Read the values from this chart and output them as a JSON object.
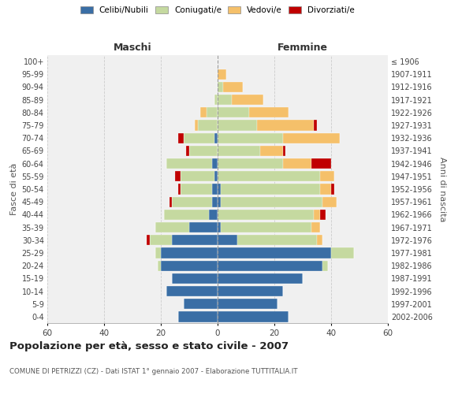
{
  "age_groups": [
    "0-4",
    "5-9",
    "10-14",
    "15-19",
    "20-24",
    "25-29",
    "30-34",
    "35-39",
    "40-44",
    "45-49",
    "50-54",
    "55-59",
    "60-64",
    "65-69",
    "70-74",
    "75-79",
    "80-84",
    "85-89",
    "90-94",
    "95-99",
    "100+"
  ],
  "birth_years": [
    "2002-2006",
    "1997-2001",
    "1992-1996",
    "1987-1991",
    "1982-1986",
    "1977-1981",
    "1972-1976",
    "1967-1971",
    "1962-1966",
    "1957-1961",
    "1952-1956",
    "1947-1951",
    "1942-1946",
    "1937-1941",
    "1932-1936",
    "1927-1931",
    "1922-1926",
    "1917-1921",
    "1912-1916",
    "1907-1911",
    "≤ 1906"
  ],
  "male": {
    "celibi": [
      14,
      12,
      18,
      16,
      20,
      20,
      16,
      10,
      3,
      2,
      2,
      1,
      2,
      0,
      1,
      0,
      0,
      0,
      0,
      0,
      0
    ],
    "coniugati": [
      0,
      0,
      0,
      0,
      1,
      2,
      8,
      12,
      16,
      14,
      11,
      12,
      16,
      10,
      11,
      7,
      4,
      1,
      0,
      0,
      0
    ],
    "vedovi": [
      0,
      0,
      0,
      0,
      0,
      0,
      0,
      0,
      0,
      0,
      0,
      0,
      0,
      0,
      0,
      1,
      2,
      0,
      0,
      0,
      0
    ],
    "divorziati": [
      0,
      0,
      0,
      0,
      0,
      0,
      1,
      0,
      0,
      1,
      1,
      2,
      0,
      1,
      2,
      0,
      0,
      0,
      0,
      0,
      0
    ]
  },
  "female": {
    "nubili": [
      25,
      21,
      23,
      30,
      37,
      40,
      7,
      1,
      0,
      1,
      1,
      0,
      0,
      0,
      0,
      0,
      0,
      0,
      0,
      0,
      0
    ],
    "coniugate": [
      0,
      0,
      0,
      0,
      2,
      8,
      28,
      32,
      34,
      36,
      35,
      36,
      23,
      15,
      23,
      14,
      11,
      5,
      2,
      0,
      0
    ],
    "vedove": [
      0,
      0,
      0,
      0,
      0,
      0,
      2,
      3,
      2,
      5,
      4,
      5,
      10,
      8,
      20,
      20,
      14,
      11,
      7,
      3,
      0
    ],
    "divorziate": [
      0,
      0,
      0,
      0,
      0,
      0,
      0,
      0,
      2,
      0,
      1,
      0,
      7,
      1,
      0,
      1,
      0,
      0,
      0,
      0,
      0
    ]
  },
  "colors": {
    "celibi_nubili": "#3A6EA5",
    "coniugati": "#C5D9A0",
    "vedovi": "#F5C06A",
    "divorziati": "#C00000"
  },
  "xlim": 60,
  "title": "Popolazione per età, sesso e stato civile - 2007",
  "subtitle": "COMUNE DI PETRIZZI (CZ) - Dati ISTAT 1° gennaio 2007 - Elaborazione TUTTITALIA.IT",
  "xlabel_left": "Maschi",
  "xlabel_right": "Femmine",
  "ylabel_left": "Fasce di età",
  "ylabel_right": "Anni di nascita",
  "bg_color": "#F0F0F0",
  "grid_color": "#CCCCCC"
}
